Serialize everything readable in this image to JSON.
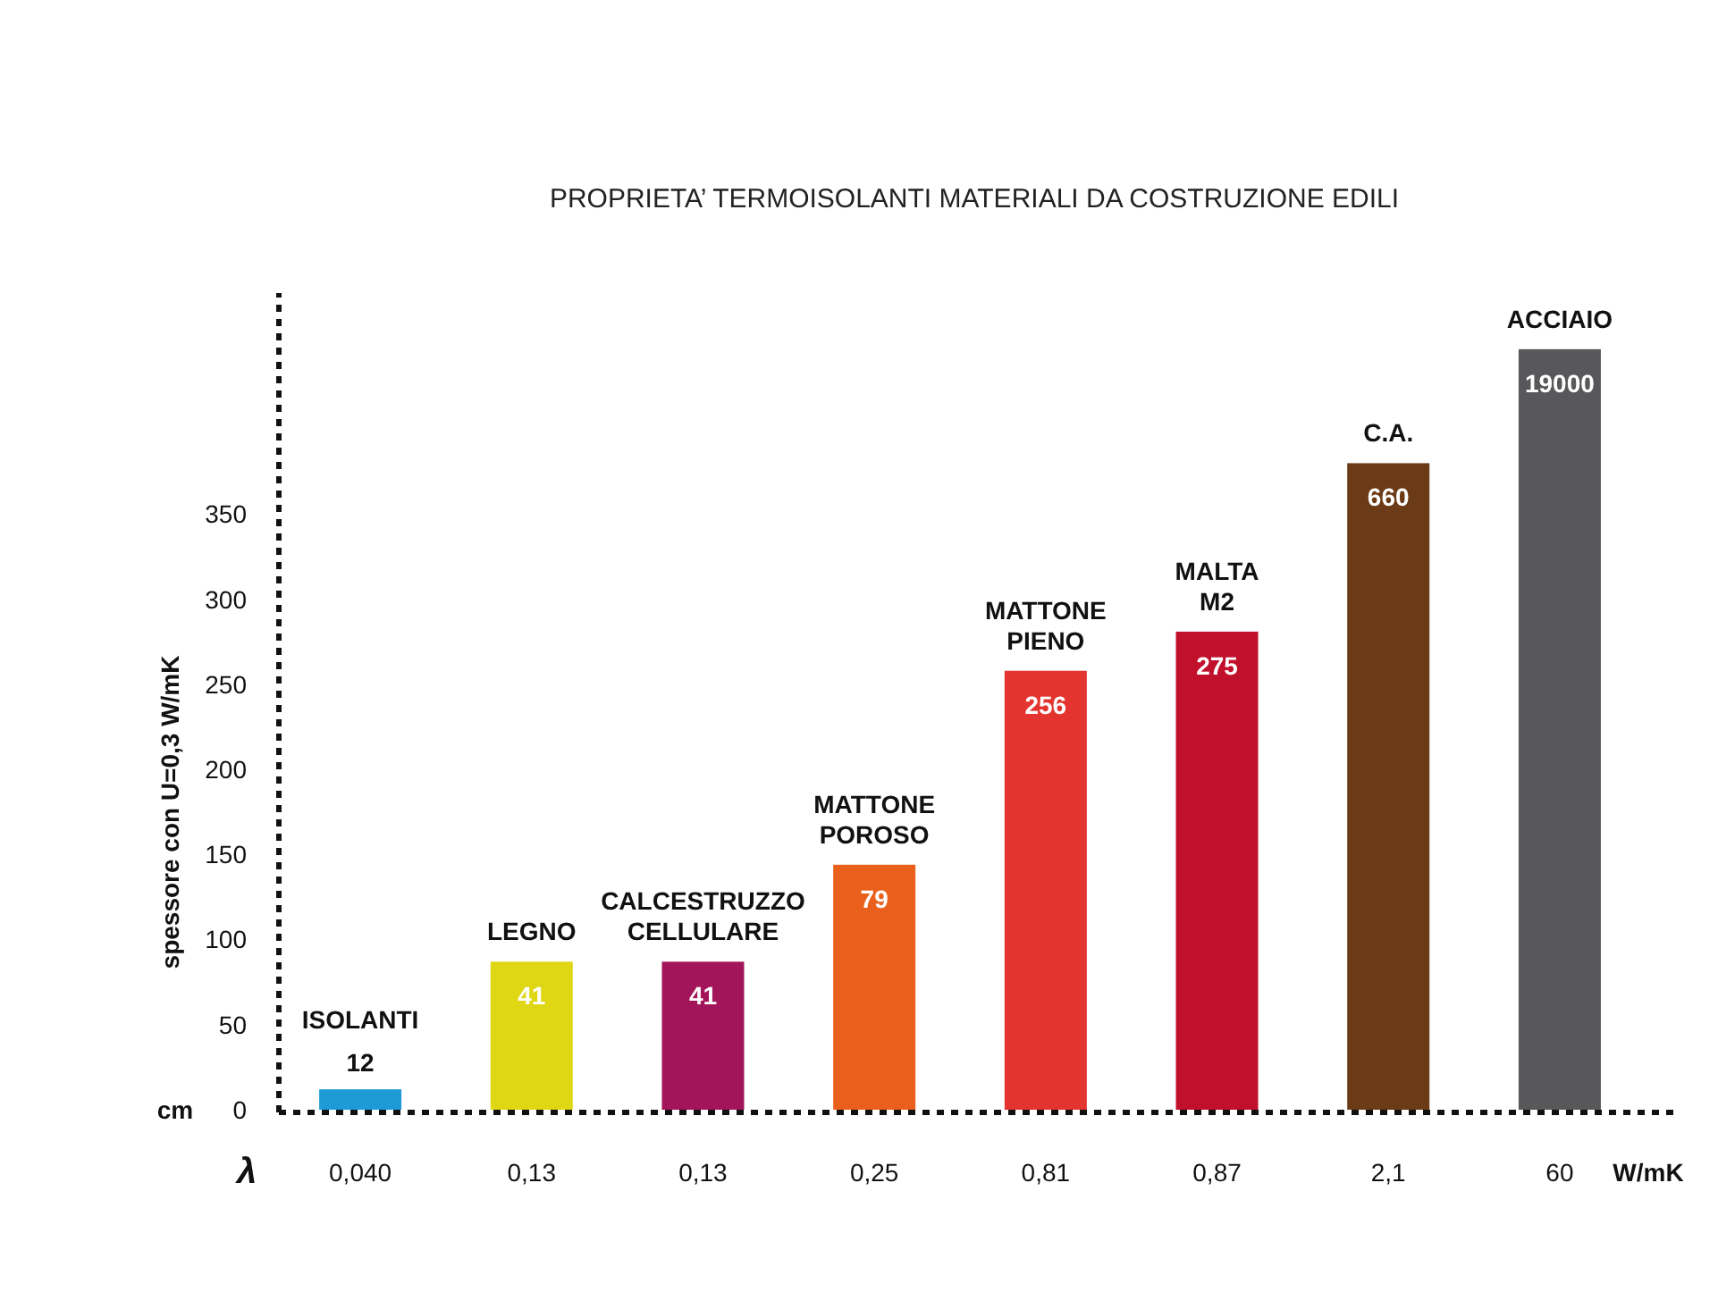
{
  "chart_data": {
    "type": "bar",
    "title": "PROPRIETA’ TERMOISOLANTI MATERIALI DA COSTRUZIONE EDILI",
    "ylabel": "spessore con U=0,3 W/mK",
    "xlabel": "W/mK",
    "categories": [
      "ISOLANTI",
      "LEGNO",
      "CALCESTRUZZO CELLULARE",
      "MATTONE POROSO",
      "MATTONE PIENO",
      "MALTA M2",
      "C.A.",
      "ACCIAIO"
    ],
    "values": [
      12,
      87,
      87,
      144,
      258,
      281,
      380,
      447
    ],
    "colors": [
      "#1e9bd7",
      "#dfd614",
      "#a3155a",
      "#e8601c",
      "#e3342f",
      "#c0102c",
      "#6b3a16",
      "#58585a"
    ],
    "ylim": [
      0,
      480
    ],
    "yticks": [
      0,
      50,
      100,
      150,
      200,
      250,
      300,
      350
    ],
    "grid": false,
    "annotations": [
      "λ",
      "cm",
      "0,040",
      "0,13",
      "0,13",
      "0,25",
      "0,81",
      "0,87",
      "2,1",
      "60",
      {
        "text": "12",
        "x": "ISOLANTI",
        "y": 12
      },
      {
        "text": "41",
        "x": "LEGNO",
        "y": 87
      },
      {
        "text": "41",
        "x": "CALCESTRUZZO CELLULARE",
        "y": 87
      },
      {
        "text": "79",
        "x": "MATTONE POROSO",
        "y": 144
      },
      {
        "text": "256",
        "x": "MATTONE PIENO",
        "y": 258
      },
      {
        "text": "275",
        "x": "MALTA M2",
        "y": 281
      },
      {
        "text": "660",
        "x": "C.A.",
        "y": 380
      },
      {
        "text": "19000",
        "x": "ACCIAIO",
        "y": 447
      }
    ]
  }
}
